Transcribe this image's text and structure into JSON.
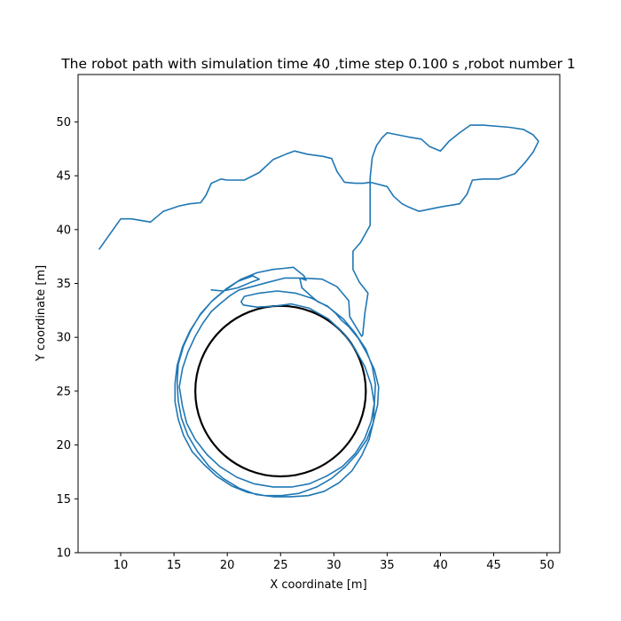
{
  "chart_data": {
    "type": "line",
    "title": "The robot path with simulation time 40 ,time step 0.100 s ,robot number 1",
    "xlabel": "X coordinate [m]",
    "ylabel": "Y coordinate [m]",
    "xlim": [
      6,
      51.2
    ],
    "ylim": [
      10,
      54.4
    ],
    "xticks": [
      10,
      15,
      20,
      25,
      30,
      35,
      40,
      45,
      50
    ],
    "yticks": [
      10,
      15,
      20,
      25,
      30,
      35,
      40,
      45,
      50
    ],
    "grid": false,
    "colors": {
      "path": "#1f77b4",
      "target": "#000000"
    },
    "target_circle": {
      "center": [
        25,
        25
      ],
      "radius": 8
    },
    "series": [
      {
        "points": [
          [
            8.0,
            38.2
          ],
          [
            9.0,
            39.6
          ],
          [
            10.0,
            41.0
          ],
          [
            11.0,
            41.0
          ],
          [
            12.8,
            40.7
          ],
          [
            14.0,
            41.7
          ],
          [
            15.5,
            42.2
          ],
          [
            16.5,
            42.4
          ],
          [
            17.5,
            42.5
          ],
          [
            18.0,
            43.2
          ],
          [
            18.5,
            44.3
          ],
          [
            19.4,
            44.7
          ],
          [
            20.0,
            44.6
          ],
          [
            21.6,
            44.6
          ],
          [
            23.0,
            45.3
          ],
          [
            24.3,
            46.5
          ],
          [
            25.5,
            47.0
          ],
          [
            26.3,
            47.3
          ],
          [
            27.5,
            47.0
          ],
          [
            29.0,
            46.8
          ],
          [
            29.8,
            46.6
          ],
          [
            30.3,
            45.4
          ],
          [
            31.0,
            44.4
          ],
          [
            32.0,
            44.3
          ],
          [
            32.8,
            44.3
          ],
          [
            33.4,
            44.4
          ],
          [
            35.0,
            44.0
          ],
          [
            35.6,
            43.1
          ],
          [
            36.4,
            42.4
          ],
          [
            37.0,
            42.1
          ],
          [
            38.0,
            41.7
          ],
          [
            40.0,
            42.1
          ],
          [
            41.2,
            42.3
          ],
          [
            41.8,
            42.4
          ],
          [
            42.5,
            43.3
          ],
          [
            43.0,
            44.6
          ],
          [
            44.0,
            44.7
          ],
          [
            45.5,
            44.7
          ],
          [
            47.0,
            45.2
          ],
          [
            48.0,
            46.3
          ],
          [
            48.7,
            47.2
          ],
          [
            49.2,
            48.2
          ],
          [
            48.7,
            48.8
          ],
          [
            47.8,
            49.3
          ],
          [
            46.5,
            49.5
          ],
          [
            44.0,
            49.7
          ],
          [
            42.8,
            49.7
          ],
          [
            41.8,
            49.0
          ],
          [
            40.8,
            48.2
          ],
          [
            40.0,
            47.3
          ],
          [
            39.0,
            47.7
          ],
          [
            38.2,
            48.4
          ],
          [
            37.0,
            48.6
          ],
          [
            36.0,
            48.8
          ],
          [
            35.0,
            49.0
          ],
          [
            34.5,
            48.5
          ],
          [
            34.0,
            47.8
          ],
          [
            33.6,
            46.7
          ],
          [
            33.4,
            44.8
          ],
          [
            33.4,
            42.0
          ],
          [
            33.4,
            40.4
          ],
          [
            32.5,
            38.8
          ],
          [
            31.8,
            38.0
          ],
          [
            31.8,
            36.3
          ],
          [
            32.4,
            35.1
          ],
          [
            33.2,
            34.1
          ],
          [
            32.9,
            32.2
          ],
          [
            32.7,
            30.2
          ],
          [
            32.6,
            30.1
          ],
          [
            31.5,
            31.9
          ],
          [
            31.4,
            33.4
          ],
          [
            30.3,
            34.7
          ],
          [
            28.9,
            35.4
          ],
          [
            27.1,
            35.5
          ],
          [
            25.4,
            35.5
          ],
          [
            23.8,
            35.1
          ],
          [
            22.3,
            34.7
          ],
          [
            21.1,
            34.4
          ],
          [
            20.3,
            33.9
          ],
          [
            19.3,
            33.1
          ],
          [
            18.5,
            32.4
          ],
          [
            17.7,
            31.3
          ],
          [
            17.0,
            30.1
          ],
          [
            16.3,
            28.6
          ],
          [
            15.8,
            27.1
          ],
          [
            15.5,
            25.4
          ],
          [
            15.8,
            23.6
          ],
          [
            16.2,
            22.0
          ],
          [
            17.0,
            20.5
          ],
          [
            18.1,
            19.1
          ],
          [
            19.3,
            18.0
          ],
          [
            20.9,
            17.0
          ],
          [
            22.5,
            16.4
          ],
          [
            24.3,
            16.1
          ],
          [
            26.1,
            16.1
          ],
          [
            27.7,
            16.4
          ],
          [
            29.3,
            17.1
          ],
          [
            30.8,
            18.0
          ],
          [
            32.0,
            19.2
          ],
          [
            32.9,
            20.6
          ],
          [
            33.5,
            22.2
          ],
          [
            33.8,
            23.9
          ],
          [
            33.9,
            25.6
          ],
          [
            33.6,
            27.3
          ],
          [
            33.0,
            28.9
          ],
          [
            32.0,
            30.4
          ],
          [
            30.9,
            31.7
          ],
          [
            29.5,
            32.8
          ],
          [
            28.0,
            33.6
          ],
          [
            26.4,
            34.1
          ],
          [
            24.7,
            34.3
          ],
          [
            23.0,
            34.1
          ],
          [
            21.6,
            33.8
          ],
          [
            21.3,
            33.3
          ],
          [
            21.5,
            33.0
          ],
          [
            22.8,
            32.8
          ],
          [
            24.5,
            32.9
          ],
          [
            26.0,
            33.1
          ],
          [
            27.7,
            32.7
          ],
          [
            29.5,
            31.7
          ],
          [
            30.9,
            30.4
          ],
          [
            32.0,
            28.9
          ],
          [
            32.9,
            27.3
          ],
          [
            33.5,
            25.6
          ],
          [
            33.8,
            23.8
          ],
          [
            33.7,
            22.1
          ],
          [
            33.3,
            20.5
          ],
          [
            32.6,
            19.0
          ],
          [
            31.7,
            17.6
          ],
          [
            30.5,
            16.5
          ],
          [
            29.1,
            15.7
          ],
          [
            27.6,
            15.3
          ],
          [
            26.0,
            15.2
          ],
          [
            24.4,
            15.2
          ],
          [
            22.7,
            15.4
          ],
          [
            21.1,
            16.0
          ],
          [
            19.6,
            16.9
          ],
          [
            18.3,
            18.0
          ],
          [
            17.2,
            19.4
          ],
          [
            16.3,
            20.9
          ],
          [
            15.7,
            22.5
          ],
          [
            15.4,
            24.1
          ],
          [
            15.3,
            25.8
          ],
          [
            15.4,
            27.5
          ],
          [
            15.9,
            29.2
          ],
          [
            16.6,
            30.7
          ],
          [
            17.5,
            32.2
          ],
          [
            18.6,
            33.4
          ],
          [
            19.9,
            34.5
          ],
          [
            21.3,
            35.4
          ],
          [
            22.8,
            36.0
          ],
          [
            24.3,
            36.3
          ],
          [
            25.3,
            36.4
          ],
          [
            26.2,
            36.5
          ],
          [
            27.2,
            35.7
          ],
          [
            27.4,
            35.3
          ],
          [
            26.8,
            35.5
          ],
          [
            27.0,
            34.6
          ],
          [
            27.9,
            33.8
          ],
          [
            28.5,
            33.3
          ],
          [
            29.4,
            32.9
          ],
          [
            30.2,
            32.2
          ],
          [
            30.7,
            31.6
          ],
          [
            31.4,
            31.0
          ],
          [
            32.3,
            29.9
          ],
          [
            33.1,
            28.5
          ],
          [
            33.8,
            27.0
          ],
          [
            34.2,
            25.4
          ],
          [
            34.1,
            23.7
          ],
          [
            33.7,
            22.1
          ],
          [
            33.1,
            20.5
          ],
          [
            32.2,
            19.2
          ],
          [
            31.1,
            18.0
          ],
          [
            29.8,
            16.9
          ],
          [
            28.4,
            16.1
          ],
          [
            26.7,
            15.5
          ],
          [
            25.1,
            15.3
          ],
          [
            23.5,
            15.3
          ],
          [
            21.9,
            15.6
          ],
          [
            20.4,
            16.2
          ],
          [
            19.0,
            17.1
          ],
          [
            17.8,
            18.2
          ],
          [
            16.7,
            19.4
          ],
          [
            15.9,
            20.9
          ],
          [
            15.4,
            22.4
          ],
          [
            15.1,
            24.0
          ],
          [
            15.1,
            25.7
          ],
          [
            15.3,
            27.4
          ],
          [
            15.8,
            29.1
          ],
          [
            16.5,
            30.6
          ],
          [
            17.4,
            32.0
          ],
          [
            18.5,
            33.3
          ],
          [
            19.7,
            34.3
          ],
          [
            21.0,
            35.2
          ],
          [
            22.4,
            35.7
          ],
          [
            23.0,
            35.4
          ],
          [
            22.2,
            35.1
          ],
          [
            21.0,
            34.6
          ],
          [
            19.6,
            34.3
          ],
          [
            18.5,
            34.4
          ]
        ]
      }
    ]
  }
}
